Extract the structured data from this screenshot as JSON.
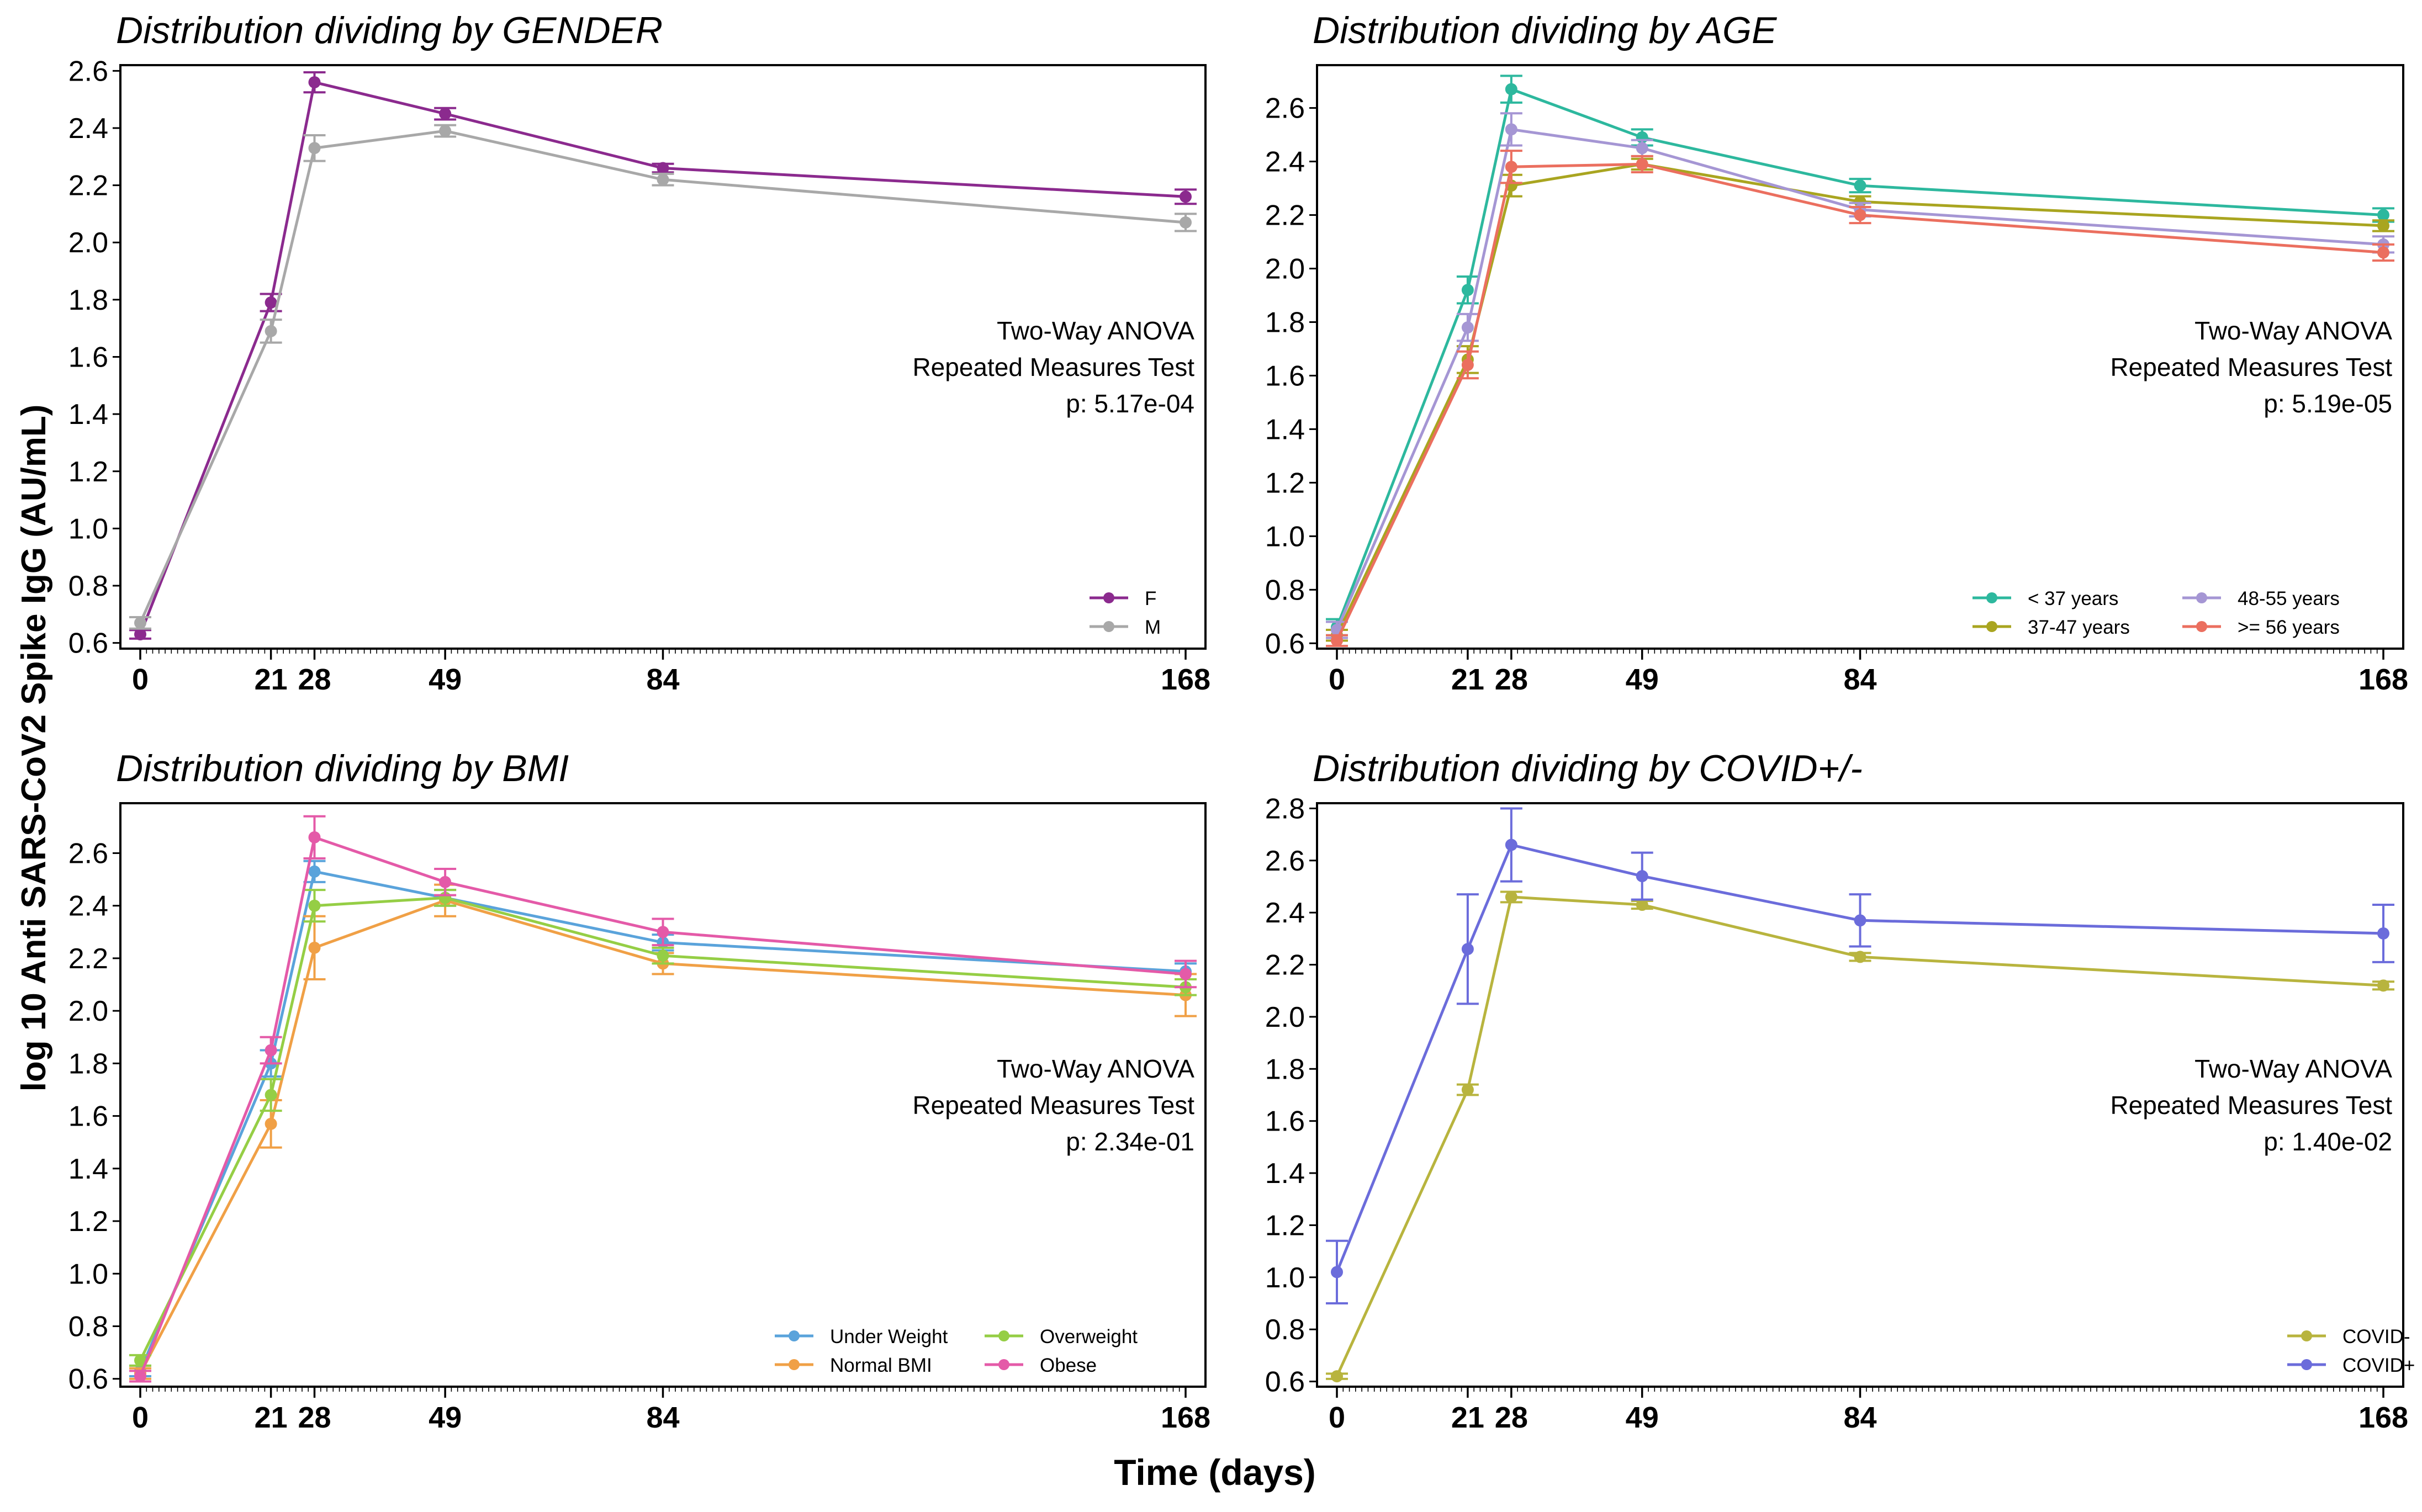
{
  "figure": {
    "ylabel": "log 10 Anti SARS-CoV2 Spike IgG (AU/mL)",
    "xlabel": "Time (days)",
    "test_line1": "Two-Way ANOVA",
    "test_line2": "Repeated Measures Test"
  },
  "chart_data": [
    {
      "type": "line",
      "title": "Distribution dividing by GENDER",
      "x": [
        0,
        21,
        28,
        49,
        84,
        168
      ],
      "xticks": [
        0,
        21,
        28,
        49,
        84,
        168
      ],
      "ylim": [
        0.58,
        2.62
      ],
      "yticks": [
        0.6,
        0.8,
        1.0,
        1.2,
        1.4,
        1.6,
        1.8,
        2.0,
        2.2,
        2.4,
        2.6
      ],
      "pvalue": "p: 5.17e-04",
      "legend_cols": 1,
      "series": [
        {
          "name": "F",
          "color": "#8B2A8E",
          "values": [
            0.63,
            1.79,
            2.56,
            2.45,
            2.26,
            2.16
          ],
          "err": [
            0.015,
            0.03,
            0.035,
            0.02,
            0.015,
            0.025
          ]
        },
        {
          "name": "M",
          "color": "#A8A8A8",
          "values": [
            0.67,
            1.69,
            2.33,
            2.39,
            2.22,
            2.07
          ],
          "err": [
            0.02,
            0.04,
            0.045,
            0.02,
            0.02,
            0.03
          ]
        }
      ]
    },
    {
      "type": "line",
      "title": "Distribution dividing by AGE",
      "x": [
        0,
        21,
        28,
        49,
        84,
        168
      ],
      "xticks": [
        0,
        21,
        28,
        49,
        84,
        168
      ],
      "ylim": [
        0.58,
        2.76
      ],
      "yticks": [
        0.6,
        0.8,
        1.0,
        1.2,
        1.4,
        1.6,
        1.8,
        2.0,
        2.2,
        2.4,
        2.6
      ],
      "pvalue": "p: 5.19e-05",
      "legend_cols": 2,
      "series": [
        {
          "name": "< 37 years",
          "color": "#2DB89E",
          "values": [
            0.66,
            1.92,
            2.67,
            2.49,
            2.31,
            2.2
          ],
          "err": [
            0.03,
            0.05,
            0.05,
            0.03,
            0.025,
            0.025
          ]
        },
        {
          "name": "37-47 years",
          "color": "#A9A520",
          "values": [
            0.63,
            1.66,
            2.31,
            2.39,
            2.25,
            2.16
          ],
          "err": [
            0.02,
            0.05,
            0.04,
            0.02,
            0.02,
            0.02
          ]
        },
        {
          "name": "48-55 years",
          "color": "#A596D4",
          "values": [
            0.65,
            1.78,
            2.52,
            2.45,
            2.22,
            2.09
          ],
          "err": [
            0.03,
            0.05,
            0.06,
            0.03,
            0.025,
            0.03
          ]
        },
        {
          "name": ">= 56 years",
          "color": "#EB6F5F",
          "values": [
            0.61,
            1.64,
            2.38,
            2.39,
            2.2,
            2.06
          ],
          "err": [
            0.02,
            0.05,
            0.06,
            0.03,
            0.03,
            0.03
          ]
        }
      ]
    },
    {
      "type": "line",
      "title": "Distribution dividing by BMI",
      "x": [
        0,
        21,
        28,
        49,
        84,
        168
      ],
      "xticks": [
        0,
        21,
        28,
        49,
        84,
        168
      ],
      "ylim": [
        0.57,
        2.79
      ],
      "yticks": [
        0.6,
        0.8,
        1.0,
        1.2,
        1.4,
        1.6,
        1.8,
        2.0,
        2.2,
        2.4,
        2.6
      ],
      "pvalue": "p: 2.34e-01",
      "legend_cols": 2,
      "series": [
        {
          "name": "Under Weight",
          "color": "#5AA3DB",
          "values": [
            0.63,
            1.8,
            2.53,
            2.43,
            2.26,
            2.15
          ],
          "err": [
            0.02,
            0.05,
            0.04,
            0.03,
            0.03,
            0.03
          ]
        },
        {
          "name": "Normal BMI",
          "color": "#F0A046",
          "values": [
            0.62,
            1.57,
            2.24,
            2.42,
            2.18,
            2.06
          ],
          "err": [
            0.02,
            0.09,
            0.12,
            0.06,
            0.04,
            0.08
          ]
        },
        {
          "name": "Overweight",
          "color": "#95CE45",
          "values": [
            0.67,
            1.68,
            2.4,
            2.43,
            2.21,
            2.09
          ],
          "err": [
            0.02,
            0.06,
            0.06,
            0.03,
            0.03,
            0.03
          ]
        },
        {
          "name": "Obese",
          "color": "#E45AA8",
          "values": [
            0.61,
            1.85,
            2.66,
            2.49,
            2.3,
            2.14
          ],
          "err": [
            0.02,
            0.05,
            0.08,
            0.05,
            0.05,
            0.05
          ]
        }
      ]
    },
    {
      "type": "line",
      "title": "Distribution dividing by COVID+/-",
      "x": [
        0,
        21,
        28,
        49,
        84,
        168
      ],
      "xticks": [
        0,
        21,
        28,
        49,
        84,
        168
      ],
      "ylim": [
        0.58,
        2.82
      ],
      "yticks": [
        0.6,
        0.8,
        1.0,
        1.2,
        1.4,
        1.6,
        1.8,
        2.0,
        2.2,
        2.4,
        2.6,
        2.8
      ],
      "pvalue": "p: 1.40e-02",
      "legend_cols": 1,
      "series": [
        {
          "name": "COVID-",
          "color": "#B8B43E",
          "values": [
            0.62,
            1.72,
            2.46,
            2.43,
            2.23,
            2.12
          ],
          "err": [
            0.01,
            0.02,
            0.02,
            0.015,
            0.015,
            0.015
          ]
        },
        {
          "name": "COVID+",
          "color": "#6B6CDB",
          "values": [
            1.02,
            2.26,
            2.66,
            2.54,
            2.37,
            2.32
          ],
          "err": [
            0.12,
            0.21,
            0.14,
            0.09,
            0.1,
            0.11
          ]
        }
      ]
    }
  ]
}
